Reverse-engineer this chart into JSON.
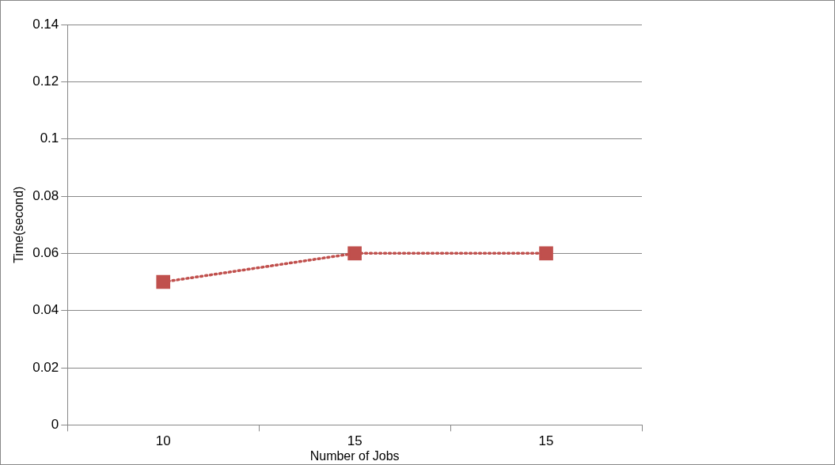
{
  "chart_data": {
    "type": "line",
    "xlabel": "Number of Jobs",
    "ylabel": "Time(second)",
    "categories": [
      "10",
      "15",
      "15"
    ],
    "series": [
      {
        "color": "#c0504d",
        "values": [
          0.05,
          0.06,
          0.06
        ]
      }
    ],
    "ylim": [
      0,
      0.14
    ],
    "yticks": [
      0,
      0.02,
      0.04,
      0.06,
      0.08,
      0.1,
      0.12,
      0.14
    ],
    "grid": "y",
    "marker": "square",
    "line_style": "dotted",
    "legend": false
  }
}
